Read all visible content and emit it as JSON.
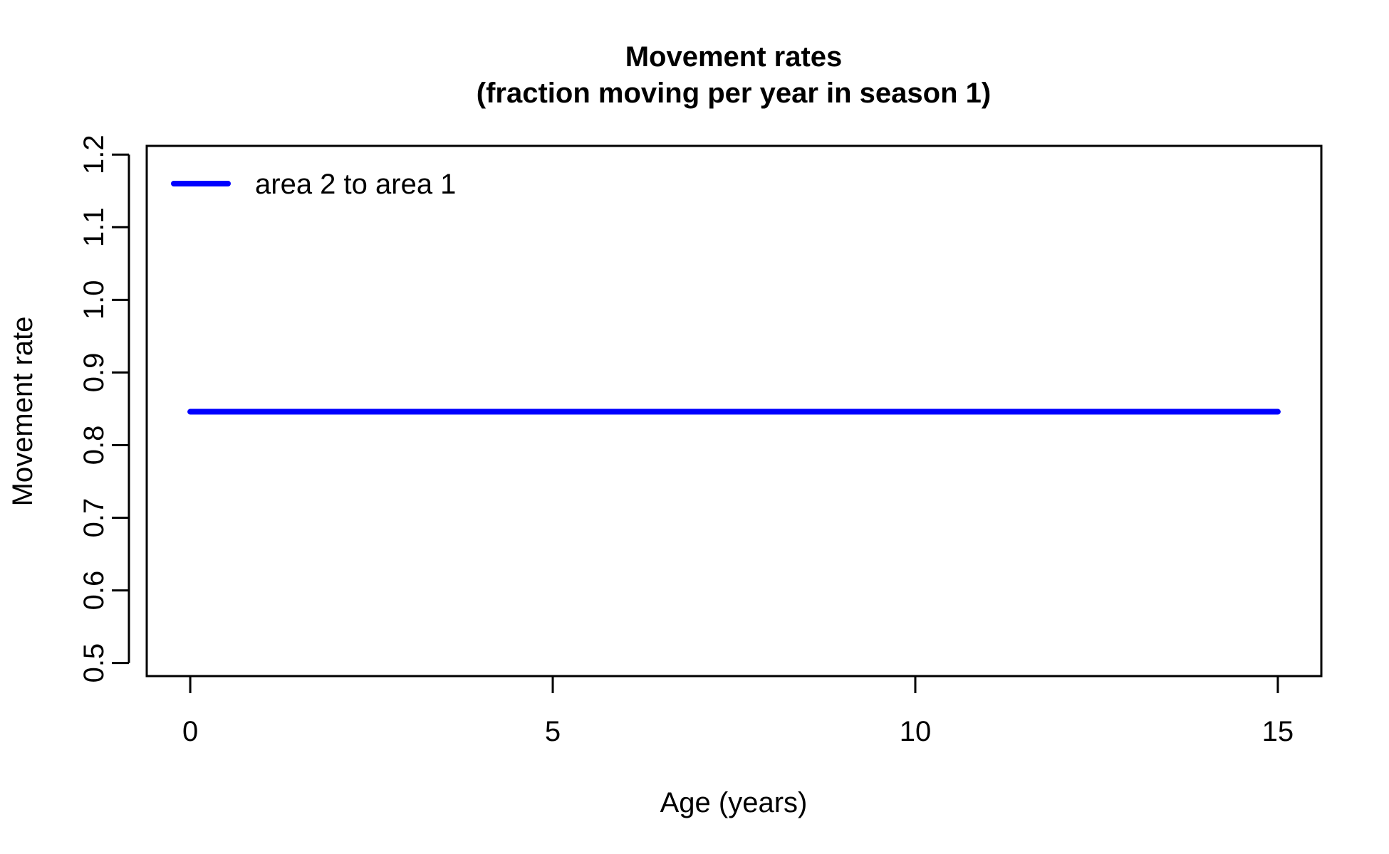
{
  "chart_data": {
    "type": "line",
    "title": "Movement rates",
    "subtitle": "(fraction moving per year in season 1)",
    "xlabel": "Age (years)",
    "ylabel": "Movement rate",
    "xlim": [
      -0.6,
      15.6
    ],
    "ylim": [
      0.482,
      1.212
    ],
    "x_ticks": [
      0,
      5,
      10,
      15
    ],
    "x_tick_labels": [
      "0",
      "5",
      "10",
      "15"
    ],
    "y_ticks": [
      0.5,
      0.6,
      0.7,
      0.8,
      0.9,
      1.0,
      1.1,
      1.2
    ],
    "y_tick_labels": [
      "0.5",
      "0.6",
      "0.7",
      "0.8",
      "0.9",
      "1.0",
      "1.1",
      "1.2"
    ],
    "grid": false,
    "legend_position": "top-left",
    "series": [
      {
        "name": "area 2 to area 1",
        "color": "#0000ff",
        "x": [
          0,
          15
        ],
        "y": [
          0.846,
          0.846
        ]
      }
    ]
  }
}
